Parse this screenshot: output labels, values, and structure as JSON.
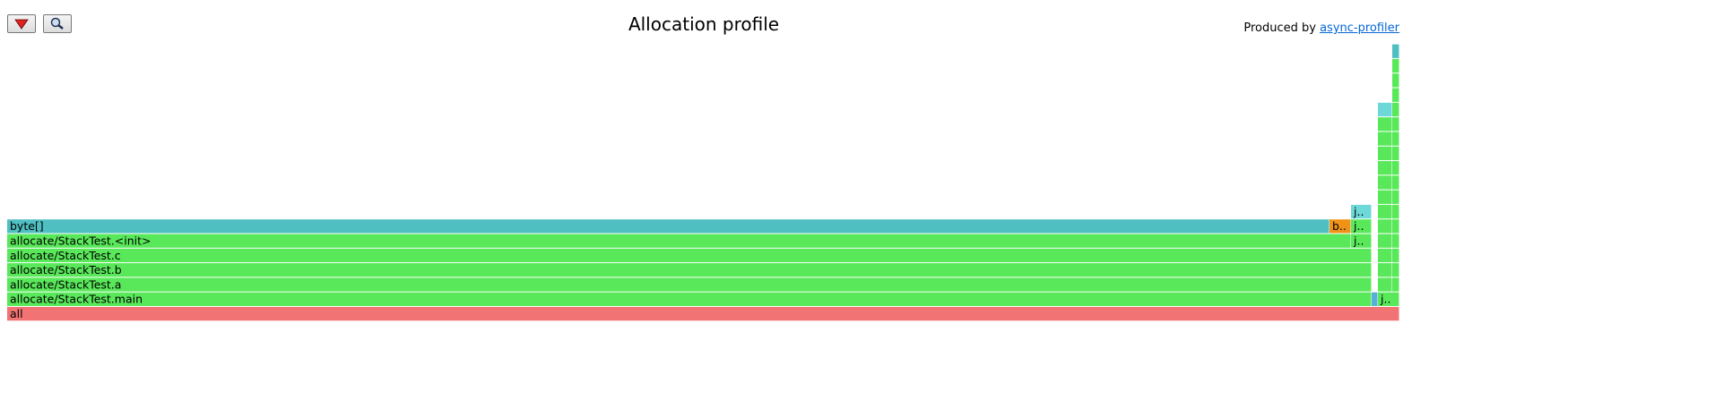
{
  "header": {
    "title": "Allocation profile",
    "credit": "Produced by",
    "link": "async-profiler"
  },
  "frames": [
    {
      "label": "all"
    },
    {
      "label": "allocate/StackTest.main"
    },
    {
      "label": "allocate/StackTest.a"
    },
    {
      "label": "allocate/StackTest.b"
    },
    {
      "label": "allocate/StackTest.c"
    },
    {
      "label": "allocate/StackTest.<init>"
    },
    {
      "label": "byte[]"
    },
    {
      "label": "b.."
    },
    {
      "label": "j.."
    },
    {
      "label": "j.."
    },
    {
      "label": "j.."
    },
    {
      "label": "j.."
    }
  ]
}
